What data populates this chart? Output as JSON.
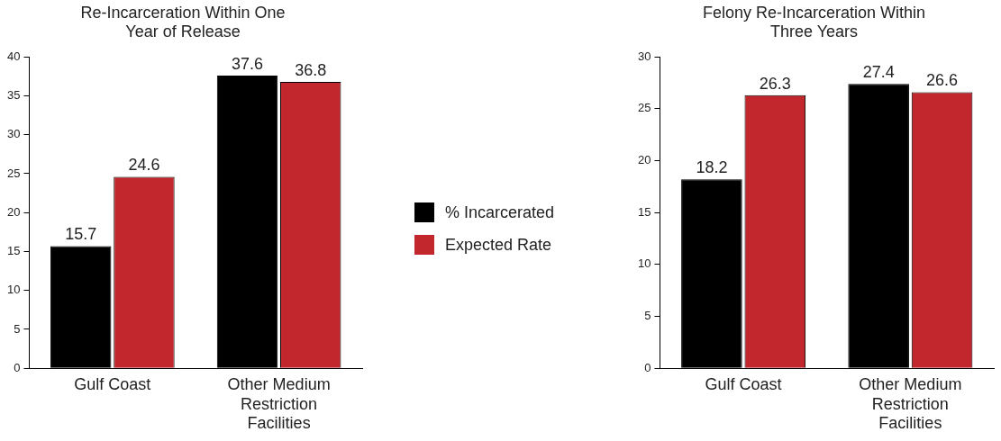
{
  "chart_data": [
    {
      "type": "bar",
      "title": "Re-Incarceration Within One Year of Release",
      "categories": [
        "Gulf Coast",
        "Other Medium Restriction Facilities"
      ],
      "series": [
        {
          "name": "% Incarcerated",
          "color": "#000000",
          "values": [
            15.7,
            37.6
          ]
        },
        {
          "name": "Expected Rate",
          "color": "#c1272d",
          "values": [
            24.6,
            36.8
          ]
        }
      ],
      "ylim": [
        0,
        40
      ],
      "yticks": [
        0,
        5,
        10,
        15,
        20,
        25,
        30,
        35,
        40
      ],
      "grid": false,
      "data_labels": true,
      "legend": "right"
    },
    {
      "type": "bar",
      "title": "Felony Re-Incarceration Within Three Years",
      "categories": [
        "Gulf Coast",
        "Other Medium Restriction Facilities"
      ],
      "series": [
        {
          "color": "#000000",
          "values": [
            18.2,
            27.4
          ]
        },
        {
          "color": "#c1272d",
          "values": [
            26.3,
            26.6
          ]
        }
      ],
      "ylim": [
        0,
        30
      ],
      "yticks": [
        0,
        5,
        10,
        15,
        20,
        25,
        30
      ],
      "grid": false,
      "data_labels": true
    }
  ]
}
